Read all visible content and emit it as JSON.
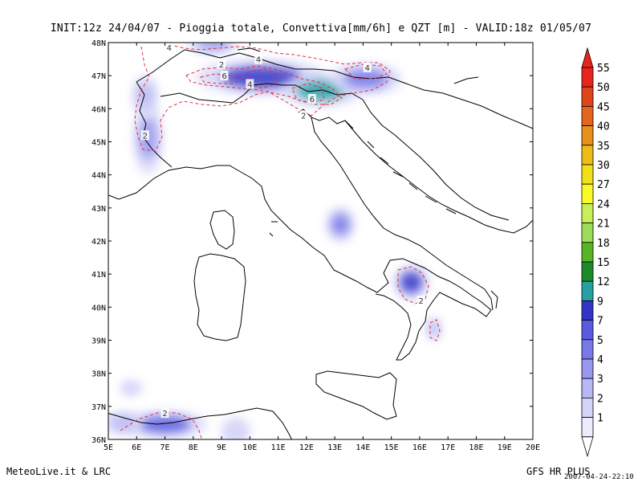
{
  "header": {
    "title": "INIT:12z  24/04/07 - Pioggia totale, Convettiva[mm/6h] e QZT [m] - VALID:18z  01/05/07"
  },
  "footer": {
    "left": "MeteoLive.it & LRC",
    "right": "GFS HR PLUS",
    "date": "2007-04-24-22:10"
  },
  "map": {
    "lon_range": [
      5,
      20
    ],
    "lat_range": [
      36,
      48
    ],
    "lon_ticks": [
      "5E",
      "6E",
      "7E",
      "8E",
      "9E",
      "10E",
      "11E",
      "12E",
      "13E",
      "14E",
      "15E",
      "16E",
      "17E",
      "18E",
      "19E",
      "20E"
    ],
    "lat_ticks": [
      "36N",
      "37N",
      "38N",
      "39N",
      "40N",
      "41N",
      "42N",
      "43N",
      "44N",
      "45N",
      "46N",
      "47N",
      "48N"
    ],
    "precip_areas": [
      {
        "lon": 10.4,
        "lat": 46.95,
        "rx": 2.0,
        "ry": 0.45,
        "value": 9
      },
      {
        "lon": 12.5,
        "lat": 46.55,
        "rx": 1.2,
        "ry": 0.4,
        "value": 12
      },
      {
        "lon": 14.1,
        "lat": 46.9,
        "rx": 1.1,
        "ry": 0.4,
        "value": 5
      },
      {
        "lon": 8.7,
        "lat": 47.95,
        "rx": 0.8,
        "ry": 0.25,
        "value": 4
      },
      {
        "lon": 6.4,
        "lat": 45.1,
        "rx": 0.45,
        "ry": 0.9,
        "value": 4
      },
      {
        "lon": 6.3,
        "lat": 46.4,
        "rx": 0.4,
        "ry": 0.5,
        "value": 3
      },
      {
        "lon": 13.2,
        "lat": 42.5,
        "rx": 0.45,
        "ry": 0.45,
        "value": 5
      },
      {
        "lon": 15.7,
        "lat": 40.75,
        "rx": 0.55,
        "ry": 0.45,
        "value": 9
      },
      {
        "lon": 16.5,
        "lat": 39.35,
        "rx": 0.25,
        "ry": 0.3,
        "value": 3
      },
      {
        "lon": 7.0,
        "lat": 36.45,
        "rx": 1.3,
        "ry": 0.35,
        "value": 7
      },
      {
        "lon": 5.5,
        "lat": 36.5,
        "rx": 0.6,
        "ry": 0.3,
        "value": 3
      },
      {
        "lon": 9.5,
        "lat": 36.25,
        "rx": 0.45,
        "ry": 0.35,
        "value": 2
      },
      {
        "lon": 5.8,
        "lat": 37.55,
        "rx": 0.35,
        "ry": 0.2,
        "value": 2
      }
    ],
    "qzt_labels": [
      {
        "lon": 7.15,
        "lat": 47.85,
        "text": "4"
      },
      {
        "lon": 9.0,
        "lat": 47.35,
        "text": "2"
      },
      {
        "lon": 9.1,
        "lat": 47.0,
        "text": "6"
      },
      {
        "lon": 10.3,
        "lat": 47.5,
        "text": "4"
      },
      {
        "lon": 10.0,
        "lat": 46.75,
        "text": "4"
      },
      {
        "lon": 12.2,
        "lat": 46.3,
        "text": "6"
      },
      {
        "lon": 11.9,
        "lat": 45.8,
        "text": "2"
      },
      {
        "lon": 14.15,
        "lat": 47.25,
        "text": "4"
      },
      {
        "lon": 6.3,
        "lat": 45.2,
        "text": "2"
      },
      {
        "lon": 16.05,
        "lat": 40.2,
        "text": "2"
      },
      {
        "lon": 7.0,
        "lat": 36.8,
        "text": "2"
      }
    ]
  },
  "colorbar": {
    "levels": [
      {
        "label": "55",
        "color": "#e8241c"
      },
      {
        "label": "50",
        "color": "#e0441a"
      },
      {
        "label": "45",
        "color": "#e4661c"
      },
      {
        "label": "40",
        "color": "#e8901c"
      },
      {
        "label": "35",
        "color": "#ecbc18"
      },
      {
        "label": "30",
        "color": "#f2e018"
      },
      {
        "label": "27",
        "color": "#fafa28"
      },
      {
        "label": "24",
        "color": "#c8ee58"
      },
      {
        "label": "21",
        "color": "#9cdc58"
      },
      {
        "label": "18",
        "color": "#58b426"
      },
      {
        "label": "15",
        "color": "#1a8a2a"
      },
      {
        "label": "12",
        "color": "#26a0a0"
      },
      {
        "label": "9",
        "color": "#3434c8"
      },
      {
        "label": "7",
        "color": "#5a5ae0"
      },
      {
        "label": "5",
        "color": "#7878e8"
      },
      {
        "label": "4",
        "color": "#9898ee"
      },
      {
        "label": "3",
        "color": "#b8b8f4"
      },
      {
        "label": "2",
        "color": "#d4d4f8"
      },
      {
        "label": "1",
        "color": "#ececfc"
      },
      {
        "label": "",
        "color": "#ffffff"
      }
    ]
  }
}
